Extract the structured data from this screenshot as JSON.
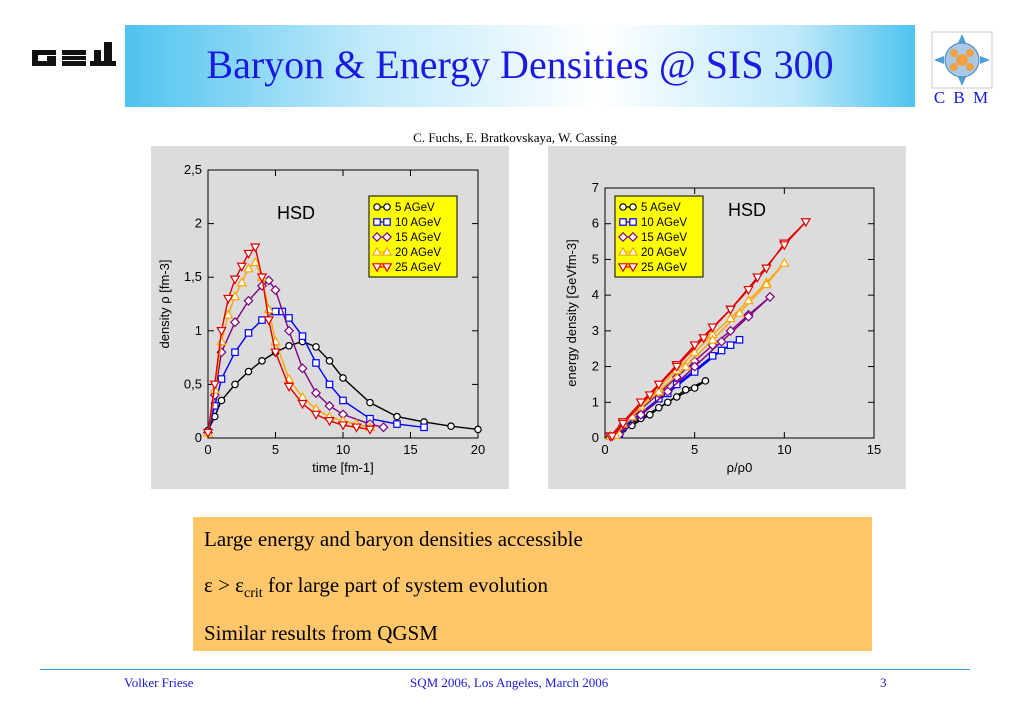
{
  "header": {
    "title": "Baryon & Energy Densities @ SIS 300",
    "left_logo": "GSI",
    "right_logo_text": "C B M",
    "right_logo_icon": "cbm-detector-icon"
  },
  "authors": "C. Fuchs, E. Bratkovskaya, W. Cassing",
  "chart_data": [
    {
      "type": "line",
      "annotation": "HSD",
      "xlabel": "time [fm-1]",
      "ylabel": "density ρ [fm-3]",
      "xlim": [
        0,
        20
      ],
      "ylim": [
        0,
        2.5
      ],
      "xticks": [
        "0",
        "5",
        "10",
        "15",
        "20"
      ],
      "yticks": [
        "0",
        "0,5",
        "1",
        "1,5",
        "2",
        "2,5"
      ],
      "legend_position": "top-right",
      "legend_color": "#ffff00",
      "series": [
        {
          "name": "5 AGeV",
          "color": "#000000",
          "marker": "circle",
          "x": [
            0,
            0.5,
            1,
            2,
            3,
            4,
            5,
            6,
            7,
            8,
            9,
            10,
            12,
            14,
            16,
            18,
            20
          ],
          "y": [
            0.07,
            0.2,
            0.35,
            0.5,
            0.62,
            0.72,
            0.8,
            0.86,
            0.9,
            0.85,
            0.72,
            0.56,
            0.33,
            0.2,
            0.15,
            0.11,
            0.08
          ]
        },
        {
          "name": "10 AGeV",
          "color": "#0000ff",
          "marker": "square",
          "x": [
            0,
            0.5,
            1,
            2,
            3,
            4,
            5,
            5.5,
            6,
            7,
            8,
            9,
            10,
            12,
            14,
            16
          ],
          "y": [
            0.05,
            0.3,
            0.55,
            0.8,
            0.98,
            1.1,
            1.18,
            1.18,
            1.12,
            0.95,
            0.7,
            0.5,
            0.35,
            0.18,
            0.13,
            0.1
          ]
        },
        {
          "name": "15 AGeV",
          "color": "#800080",
          "marker": "diamond",
          "x": [
            0,
            0.5,
            1,
            2,
            3,
            4,
            4.5,
            5,
            6,
            7,
            8,
            9,
            10,
            12,
            13
          ],
          "y": [
            0.05,
            0.4,
            0.8,
            1.08,
            1.28,
            1.42,
            1.47,
            1.38,
            1.0,
            0.65,
            0.42,
            0.3,
            0.22,
            0.13,
            0.1
          ]
        },
        {
          "name": "20 AGeV",
          "color": "#ffa500",
          "marker": "triangle-up",
          "x": [
            0,
            0.5,
            1,
            1.5,
            2,
            2.5,
            3,
            3.5,
            4,
            4.5,
            5,
            6,
            7,
            8,
            9,
            10,
            11,
            12
          ],
          "y": [
            0.05,
            0.45,
            0.9,
            1.15,
            1.32,
            1.45,
            1.58,
            1.64,
            1.5,
            1.2,
            0.9,
            0.55,
            0.38,
            0.27,
            0.2,
            0.16,
            0.13,
            0.1
          ]
        },
        {
          "name": "25 AGeV",
          "color": "#e00000",
          "marker": "triangle-down",
          "x": [
            0,
            0.5,
            1,
            1.5,
            2,
            2.5,
            3,
            3.5,
            4,
            4.5,
            5,
            6,
            7,
            8,
            9,
            10,
            11,
            12
          ],
          "y": [
            0.05,
            0.5,
            1.0,
            1.3,
            1.48,
            1.6,
            1.72,
            1.78,
            1.5,
            1.1,
            0.8,
            0.48,
            0.32,
            0.22,
            0.16,
            0.12,
            0.1,
            0.08
          ]
        }
      ]
    },
    {
      "type": "line",
      "annotation": "HSD",
      "xlabel": "ρ/ρ0",
      "ylabel": "energy density [GeVfm-3]",
      "xlim": [
        0,
        15
      ],
      "ylim": [
        0,
        7
      ],
      "xticks": [
        "0",
        "5",
        "10",
        "15"
      ],
      "yticks": [
        "0",
        "1",
        "2",
        "3",
        "4",
        "5",
        "6",
        "7"
      ],
      "legend_position": "top-left",
      "legend_color": "#ffff00",
      "series": [
        {
          "name": "5 AGeV",
          "color": "#000000",
          "marker": "circle",
          "x": [
            0.3,
            1,
            2,
            3,
            4,
            5,
            5.6,
            4.5,
            3.5,
            2.5,
            1.5,
            0.6
          ],
          "y": [
            0.05,
            0.25,
            0.55,
            0.85,
            1.15,
            1.4,
            1.6,
            1.35,
            1.0,
            0.65,
            0.35,
            0.08
          ]
        },
        {
          "name": "10 AGeV",
          "color": "#0000ff",
          "marker": "square",
          "x": [
            0.3,
            1,
            2,
            3,
            4,
            5,
            6,
            7,
            7.5,
            6.5,
            5,
            3.5,
            2,
            0.8
          ],
          "y": [
            0.05,
            0.3,
            0.7,
            1.1,
            1.5,
            1.9,
            2.3,
            2.6,
            2.75,
            2.45,
            1.85,
            1.25,
            0.65,
            0.1
          ]
        },
        {
          "name": "15 AGeV",
          "color": "#800080",
          "marker": "diamond",
          "x": [
            0.3,
            1,
            2,
            3,
            4,
            5,
            6,
            7,
            8,
            9.2,
            8,
            6.5,
            5,
            3.5,
            2,
            0.8
          ],
          "y": [
            0.05,
            0.35,
            0.8,
            1.25,
            1.7,
            2.15,
            2.6,
            3.0,
            3.45,
            3.95,
            3.4,
            2.7,
            2.0,
            1.3,
            0.65,
            0.1
          ]
        },
        {
          "name": "20 AGeV",
          "color": "#ffa500",
          "marker": "triangle-up",
          "x": [
            0.3,
            1,
            2,
            3,
            4,
            5,
            6,
            7,
            8,
            9,
            10,
            9,
            7.5,
            6,
            4.5,
            3,
            1.5,
            0.6
          ],
          "y": [
            0.05,
            0.4,
            0.9,
            1.4,
            1.9,
            2.4,
            2.9,
            3.35,
            3.85,
            4.35,
            4.9,
            4.3,
            3.5,
            2.75,
            2.0,
            1.3,
            0.6,
            0.08
          ]
        },
        {
          "name": "25 AGeV",
          "color": "#e00000",
          "marker": "triangle-down",
          "x": [
            0.3,
            1,
            2,
            3,
            4,
            5,
            6,
            7,
            8,
            9,
            10,
            11.2,
            10,
            8.5,
            7,
            5.5,
            4,
            2.5,
            1,
            0.4
          ],
          "y": [
            0.05,
            0.45,
            1.0,
            1.5,
            2.05,
            2.6,
            3.1,
            3.6,
            4.15,
            4.75,
            5.45,
            6.05,
            5.4,
            4.5,
            3.6,
            2.8,
            2.0,
            1.2,
            0.4,
            0.05
          ]
        }
      ]
    }
  ],
  "notes": {
    "line1": "Large energy and baryon densities accessible",
    "line2_prefix": "ε > ε",
    "line2_sub": "crit",
    "line2_suffix": " for large part of system evolution",
    "line3": "Similar results from QGSM"
  },
  "footer": {
    "author": "Volker Friese",
    "event": "SQM 2006, Los Angeles, March 2006",
    "page": "3"
  }
}
